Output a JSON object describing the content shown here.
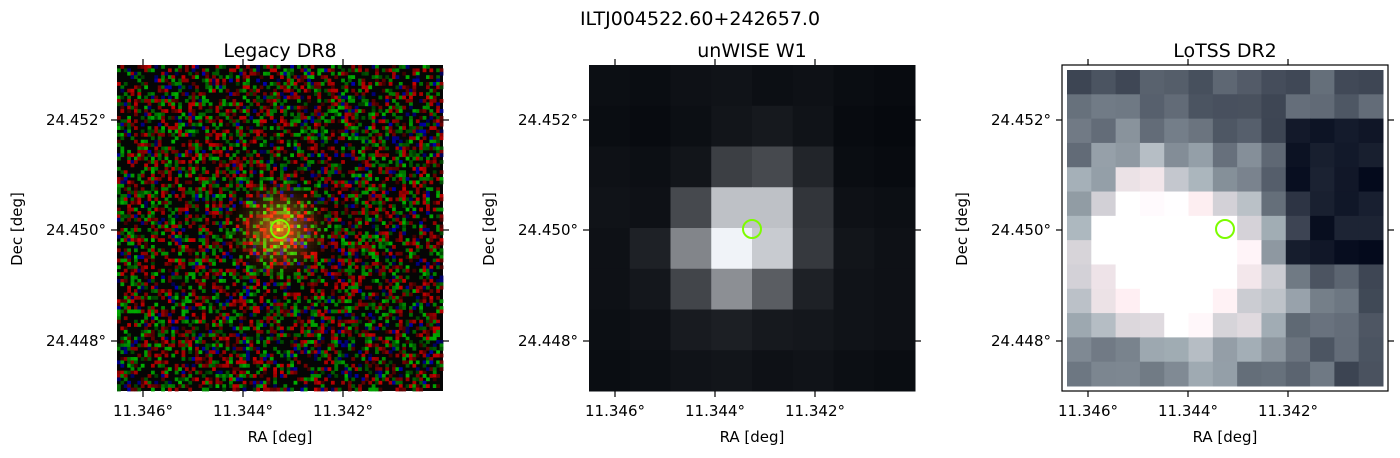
{
  "figure": {
    "title": "ILTJ004522.60+242657.0",
    "marker_color": "#7CFC00"
  },
  "panels": [
    {
      "title": "Legacy DR8",
      "xlabel": "RA [deg]",
      "ylabel": "Dec [deg]",
      "xticks": [
        "11.346°",
        "11.344°",
        "11.342°"
      ],
      "yticks": [
        "24.452°",
        "24.450°",
        "24.448°"
      ],
      "style": "optical-rgb-noise"
    },
    {
      "title": "unWISE W1",
      "xlabel": "RA [deg]",
      "ylabel": "Dec [deg]",
      "xticks": [
        "11.346°",
        "11.344°",
        "11.342°"
      ],
      "yticks": [
        "24.452°",
        "24.450°",
        "24.448°"
      ],
      "style": "grayscale-pixels"
    },
    {
      "title": "LoTSS DR2",
      "xlabel": "RA [deg]",
      "ylabel": "Dec [deg]",
      "xticks": [
        "11.346°",
        "11.344°",
        "11.342°"
      ],
      "yticks": [
        "24.452°",
        "24.450°",
        "24.448°"
      ],
      "style": "bone-pixels"
    }
  ]
}
